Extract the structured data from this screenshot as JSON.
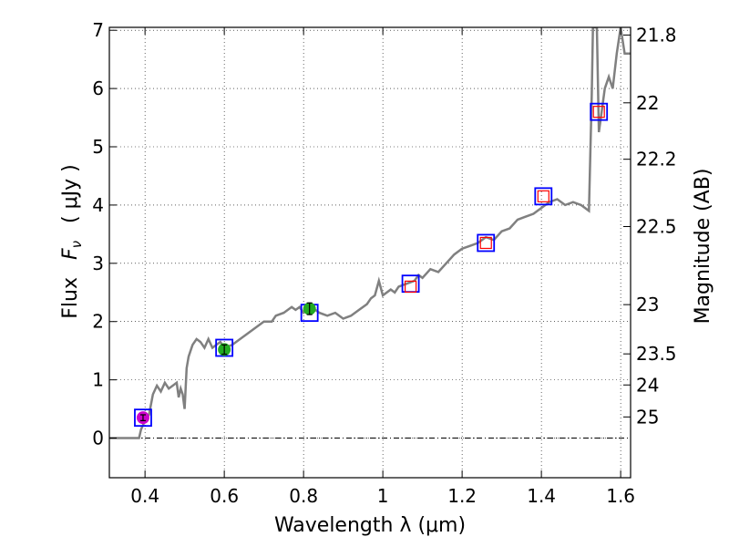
{
  "chart_data": {
    "type": "scatter",
    "title": "",
    "xlabel": "Wavelength  λ (μm)",
    "ylabel_parts": {
      "prefix": "Flux",
      "symbol": "F",
      "subscript": "ν",
      "unit": "( μJy )"
    },
    "ylabel": "Flux  Fν  ( μJy )",
    "y2label": "Magnitude (AB)",
    "xlim": [
      0.31,
      1.625
    ],
    "ylim": [
      -0.68,
      7.05
    ],
    "xticks": [
      0.4,
      0.6,
      0.8,
      1.0,
      1.2,
      1.4,
      1.6
    ],
    "xtick_labels": [
      "0.4",
      "0.6",
      "0.8",
      "1",
      "1.2",
      "1.4",
      "1.6"
    ],
    "yticks": [
      0,
      1,
      2,
      3,
      4,
      5,
      6,
      7
    ],
    "ytick_labels": [
      "0",
      "1",
      "2",
      "3",
      "4",
      "5",
      "6",
      "7"
    ],
    "y2ticks": [
      {
        "label": "21.8",
        "mag": 21.8
      },
      {
        "label": "22",
        "mag": 22.0
      },
      {
        "label": "22.2",
        "mag": 22.2
      },
      {
        "label": "22.5",
        "mag": 22.5
      },
      {
        "label": "23",
        "mag": 23.0
      },
      {
        "label": "23.5",
        "mag": 23.5
      },
      {
        "label": "24",
        "mag": 24.0
      },
      {
        "label": "25",
        "mag": 25.0
      }
    ],
    "grid": true,
    "zero_line": true,
    "series": [
      {
        "name": "model_spectrum",
        "kind": "line",
        "color": "#808080",
        "points": [
          [
            0.31,
            0.0
          ],
          [
            0.385,
            0.0
          ],
          [
            0.39,
            0.15
          ],
          [
            0.4,
            0.3
          ],
          [
            0.41,
            0.4
          ],
          [
            0.42,
            0.75
          ],
          [
            0.43,
            0.9
          ],
          [
            0.44,
            0.8
          ],
          [
            0.45,
            0.95
          ],
          [
            0.46,
            0.85
          ],
          [
            0.47,
            0.9
          ],
          [
            0.48,
            0.95
          ],
          [
            0.485,
            0.7
          ],
          [
            0.49,
            0.85
          ],
          [
            0.495,
            0.75
          ],
          [
            0.5,
            0.5
          ],
          [
            0.505,
            1.2
          ],
          [
            0.51,
            1.4
          ],
          [
            0.52,
            1.6
          ],
          [
            0.53,
            1.7
          ],
          [
            0.54,
            1.65
          ],
          [
            0.55,
            1.55
          ],
          [
            0.56,
            1.7
          ],
          [
            0.57,
            1.55
          ],
          [
            0.58,
            1.6
          ],
          [
            0.59,
            1.65
          ],
          [
            0.6,
            1.55
          ],
          [
            0.62,
            1.6
          ],
          [
            0.64,
            1.7
          ],
          [
            0.66,
            1.8
          ],
          [
            0.68,
            1.9
          ],
          [
            0.7,
            2.0
          ],
          [
            0.72,
            2.0
          ],
          [
            0.73,
            2.1
          ],
          [
            0.75,
            2.15
          ],
          [
            0.77,
            2.25
          ],
          [
            0.78,
            2.2
          ],
          [
            0.79,
            2.25
          ],
          [
            0.8,
            2.15
          ],
          [
            0.81,
            2.2
          ],
          [
            0.82,
            2.25
          ],
          [
            0.84,
            2.15
          ],
          [
            0.86,
            2.1
          ],
          [
            0.88,
            2.15
          ],
          [
            0.9,
            2.05
          ],
          [
            0.92,
            2.1
          ],
          [
            0.94,
            2.2
          ],
          [
            0.96,
            2.3
          ],
          [
            0.97,
            2.4
          ],
          [
            0.98,
            2.45
          ],
          [
            0.99,
            2.7
          ],
          [
            1.0,
            2.45
          ],
          [
            1.02,
            2.55
          ],
          [
            1.03,
            2.5
          ],
          [
            1.04,
            2.6
          ],
          [
            1.06,
            2.65
          ],
          [
            1.08,
            2.7
          ],
          [
            1.09,
            2.8
          ],
          [
            1.1,
            2.75
          ],
          [
            1.12,
            2.9
          ],
          [
            1.14,
            2.85
          ],
          [
            1.16,
            3.0
          ],
          [
            1.18,
            3.15
          ],
          [
            1.2,
            3.25
          ],
          [
            1.22,
            3.3
          ],
          [
            1.24,
            3.35
          ],
          [
            1.26,
            3.45
          ],
          [
            1.28,
            3.4
          ],
          [
            1.3,
            3.55
          ],
          [
            1.32,
            3.6
          ],
          [
            1.34,
            3.75
          ],
          [
            1.36,
            3.8
          ],
          [
            1.38,
            3.85
          ],
          [
            1.4,
            3.95
          ],
          [
            1.42,
            4.05
          ],
          [
            1.44,
            4.1
          ],
          [
            1.46,
            4.0
          ],
          [
            1.48,
            4.05
          ],
          [
            1.5,
            4.0
          ],
          [
            1.52,
            3.9
          ],
          [
            1.527,
            5.9
          ],
          [
            1.53,
            7.05
          ],
          [
            1.54,
            7.05
          ],
          [
            1.545,
            5.25
          ],
          [
            1.55,
            5.5
          ],
          [
            1.56,
            6.0
          ],
          [
            1.57,
            6.2
          ],
          [
            1.58,
            6.0
          ],
          [
            1.59,
            6.6
          ],
          [
            1.6,
            7.05
          ],
          [
            1.61,
            6.6
          ],
          [
            1.625,
            6.6
          ]
        ]
      },
      {
        "name": "model_photometry",
        "kind": "open-square",
        "edge_color": "#0000ff",
        "points": [
          [
            0.395,
            0.35
          ],
          [
            0.6,
            1.55
          ],
          [
            0.815,
            2.15
          ],
          [
            1.07,
            2.65
          ],
          [
            1.26,
            3.35
          ],
          [
            1.405,
            4.15
          ],
          [
            1.545,
            5.6
          ]
        ]
      },
      {
        "name": "observed_upper_limits",
        "kind": "open-square-small",
        "edge_color": "#ff0000",
        "points": [
          [
            1.07,
            2.6
          ],
          [
            1.26,
            3.35
          ],
          [
            1.405,
            4.15
          ],
          [
            1.545,
            5.6
          ]
        ]
      },
      {
        "name": "observed_detections",
        "kind": "errorbar-point",
        "points": [
          {
            "x": 0.395,
            "y": 0.35,
            "err": 0.05,
            "color": "#cc00cc"
          },
          {
            "x": 0.6,
            "y": 1.52,
            "err": 0.08,
            "color": "#22aa22"
          },
          {
            "x": 0.815,
            "y": 2.22,
            "err": 0.1,
            "color": "#22aa22"
          }
        ]
      }
    ]
  }
}
